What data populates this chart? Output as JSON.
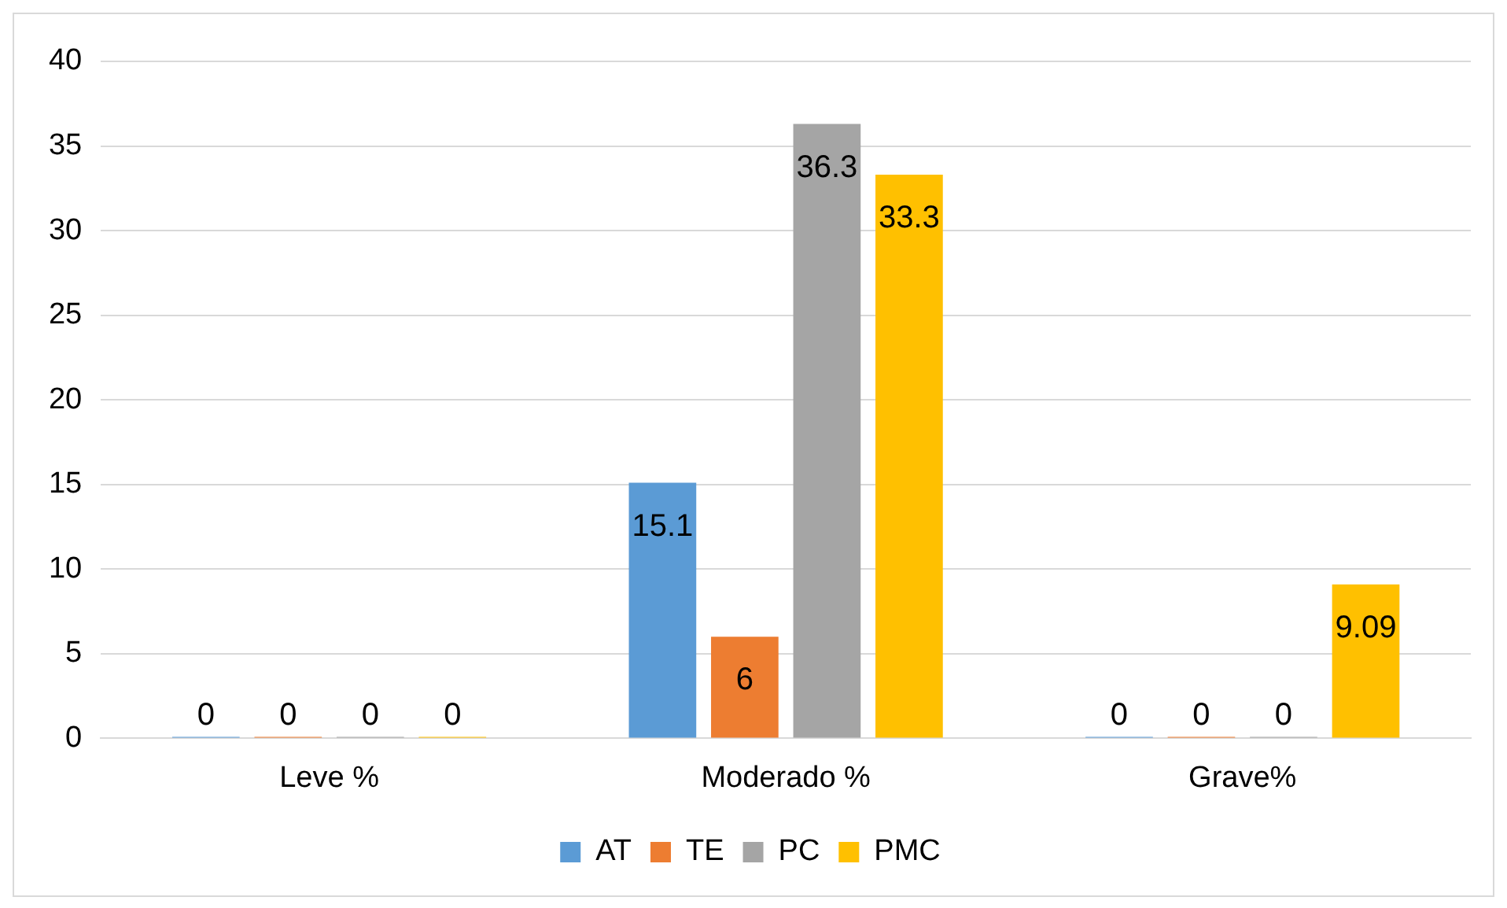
{
  "chart_data": {
    "type": "bar",
    "categories": [
      "Leve %",
      "Moderado %",
      "Grave%"
    ],
    "series": [
      {
        "name": "AT",
        "color": "#5b9bd5",
        "values": [
          0,
          15.1,
          0
        ]
      },
      {
        "name": "TE",
        "color": "#ed7d31",
        "values": [
          0,
          6,
          0
        ]
      },
      {
        "name": "PC",
        "color": "#a5a5a5",
        "values": [
          0,
          36.3,
          0
        ]
      },
      {
        "name": "PMC",
        "color": "#ffc000",
        "values": [
          0,
          33.3,
          9.09
        ]
      }
    ],
    "ylim": [
      0,
      40
    ],
    "yticks": [
      0,
      5,
      10,
      15,
      20,
      25,
      30,
      35,
      40
    ],
    "grid": "y",
    "legend": "bottom",
    "data_labels": true
  }
}
